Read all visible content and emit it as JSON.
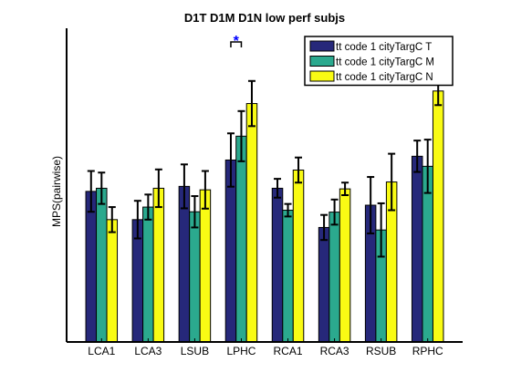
{
  "chart_data": {
    "type": "bar",
    "title": "D1T D1M D1N low perf subjs",
    "xlabel": "",
    "ylabel": "MPS(pairwise)",
    "categories": [
      "LCA1",
      "LCA3",
      "LSUB",
      "LPHC",
      "RCA1",
      "RCA3",
      "RSUB",
      "RPHC"
    ],
    "ylim": [
      0,
      1
    ],
    "y_tick_labels_shown": false,
    "grid": false,
    "legend_position": "top-right",
    "series": [
      {
        "name": "tt code 1 cityTargC T",
        "color": "#26287a",
        "values": [
          0.48,
          0.39,
          0.496,
          0.58,
          0.49,
          0.365,
          0.436,
          0.592
        ],
        "errors": [
          0.065,
          0.06,
          0.07,
          0.085,
          0.03,
          0.04,
          0.09,
          0.05
        ]
      },
      {
        "name": "tt code 1 cityTargC M",
        "color": "#2ba98e",
        "values": [
          0.49,
          0.43,
          0.415,
          0.656,
          0.42,
          0.414,
          0.357,
          0.56
        ],
        "errors": [
          0.05,
          0.04,
          0.05,
          0.08,
          0.02,
          0.04,
          0.085,
          0.085
        ]
      },
      {
        "name": "tt code 1 cityTargC N",
        "color": "#f9fb14",
        "values": [
          0.39,
          0.49,
          0.485,
          0.76,
          0.548,
          0.488,
          0.51,
          0.8
        ],
        "errors": [
          0.04,
          0.06,
          0.06,
          0.072,
          0.04,
          0.02,
          0.09,
          0.045
        ]
      }
    ],
    "annotations": [
      {
        "text": "*",
        "category": "LPHC",
        "color": "#0000ff"
      }
    ]
  }
}
